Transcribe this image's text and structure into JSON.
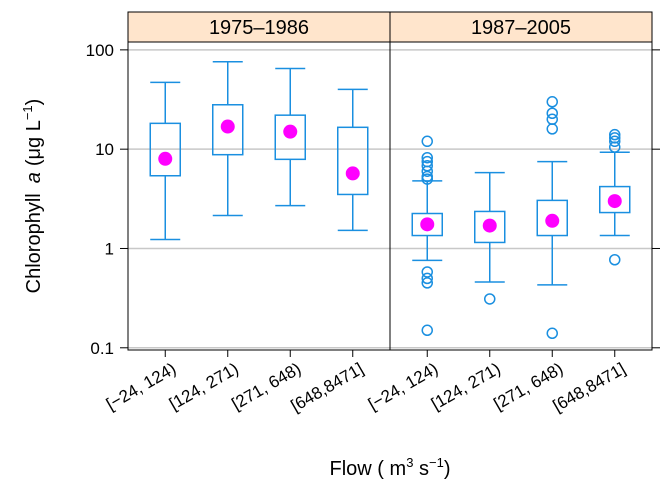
{
  "chart_data": {
    "type": "box",
    "y_label": {
      "text": "Chlorophyll",
      "italic": "a",
      "unit": "(μg L",
      "exponent": "−1",
      "close": ")"
    },
    "x_label": {
      "text": "Flow ( m",
      "exp1": "3",
      "mid": " s",
      "exp2": "−1",
      "close": ")"
    },
    "log_y": true,
    "grid": true,
    "ylim": [
      0.095,
      120
    ],
    "yticks": [
      0.1,
      1,
      10,
      100
    ],
    "box_color": "#1a8fe0",
    "median_color": "#ff00ff",
    "strip_color": "#ffe5cc",
    "panels": [
      {
        "strip": "1975–1986",
        "categories": [
          "[−24, 124)",
          "[124, 271)",
          "[271, 648)",
          "[648,8471]"
        ],
        "boxes": [
          {
            "whislo": 1.23,
            "q1": 5.4,
            "med": 8.0,
            "q3": 18.2,
            "whishi": 47,
            "fliers": []
          },
          {
            "whislo": 2.15,
            "q1": 8.8,
            "med": 16.9,
            "q3": 28,
            "whishi": 76,
            "fliers": []
          },
          {
            "whislo": 2.7,
            "q1": 7.9,
            "med": 15,
            "q3": 22,
            "whishi": 65,
            "fliers": []
          },
          {
            "whislo": 1.52,
            "q1": 3.5,
            "med": 5.7,
            "q3": 16.6,
            "whishi": 40,
            "fliers": []
          }
        ]
      },
      {
        "strip": "1987–2005",
        "categories": [
          "[−24, 124)",
          "[124, 271)",
          "[271, 648)",
          "[648,8471]"
        ],
        "boxes": [
          {
            "whislo": 0.76,
            "q1": 1.35,
            "med": 1.75,
            "q3": 2.25,
            "whishi": 4.8,
            "fliers": [
              5,
              5.3,
              6,
              6.8,
              7.5,
              8.2,
              12,
              0.58,
              0.5,
              0.45,
              0.15
            ]
          },
          {
            "whislo": 0.46,
            "q1": 1.15,
            "med": 1.7,
            "q3": 2.36,
            "whishi": 5.8,
            "fliers": [
              0.31
            ]
          },
          {
            "whislo": 0.43,
            "q1": 1.35,
            "med": 1.9,
            "q3": 3.05,
            "whishi": 7.5,
            "fliers": [
              16,
              20,
              23,
              30,
              0.14
            ]
          },
          {
            "whislo": 1.35,
            "q1": 2.3,
            "med": 3.0,
            "q3": 4.2,
            "whishi": 9.3,
            "fliers": [
              0.77,
              10.5,
              12,
              13,
              14
            ]
          }
        ]
      }
    ]
  }
}
